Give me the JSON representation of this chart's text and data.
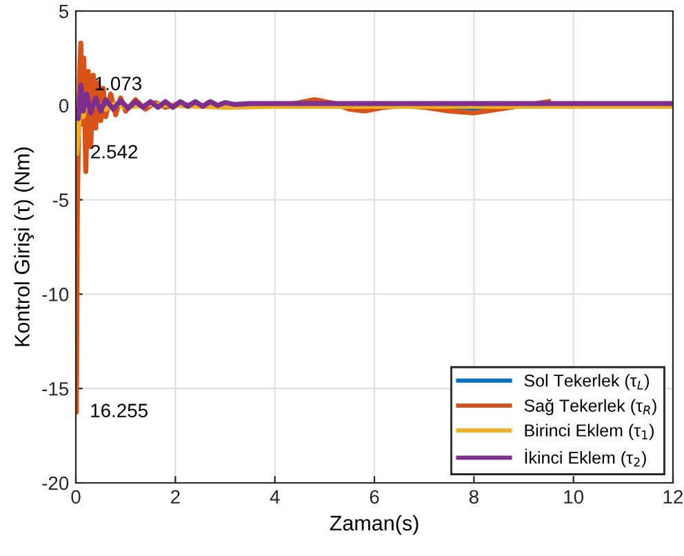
{
  "chart_data": {
    "type": "line",
    "xlabel": "Zaman(s)",
    "ylabel": "Kontrol Girişi (τ) (Nm)",
    "xlim": [
      0,
      12
    ],
    "ylim": [
      -20,
      5
    ],
    "xticks": [
      0,
      2,
      4,
      6,
      8,
      10,
      12
    ],
    "yticks": [
      -20,
      -15,
      -10,
      -5,
      0,
      5
    ],
    "grid": true,
    "legend": "bottom right",
    "line_style": "solid",
    "marker": "none",
    "series": [
      {
        "name": "Sol Tekerlek (τ$_{L}$)",
        "color": "#0072bd",
        "x": [
          7.5,
          7.8,
          8,
          8.2,
          8.5
        ],
        "values": [
          -0.1,
          -0.2,
          -0.25,
          -0.2,
          -0.1
        ]
      },
      {
        "name": "Sağ Tekerlek (τ$_{R}$)",
        "color": "#d95319",
        "x": [
          0,
          0.01,
          0.03,
          0.05,
          0.08,
          0.1,
          0.13,
          0.16,
          0.2,
          0.25,
          0.3,
          0.35,
          0.4,
          0.45,
          0.5,
          0.55,
          0.6,
          0.7,
          0.8,
          0.9,
          1.0,
          1.2,
          1.4,
          1.6,
          1.8,
          2.0,
          2.5,
          3,
          3.5,
          4,
          4.4,
          4.8,
          5.2,
          5.5,
          5.8,
          6.2,
          6.6,
          7,
          7.5,
          8,
          8.5,
          9,
          9.5
        ],
        "values": [
          0,
          -16.255,
          -5.5,
          -2,
          2,
          3.3,
          -1,
          2.5,
          -3.5,
          1.8,
          -2.2,
          1.6,
          -1.2,
          1.2,
          -0.8,
          0.9,
          -0.6,
          0.6,
          -0.5,
          0.4,
          -0.3,
          0.3,
          -0.2,
          0.15,
          -0.1,
          0.05,
          0,
          0,
          0,
          0,
          0.1,
          0.3,
          0.1,
          -0.2,
          -0.3,
          -0.1,
          0,
          -0.1,
          -0.3,
          -0.4,
          -0.2,
          0,
          0.2
        ]
      },
      {
        "name": "Birinci Eklem (τ$_{1}$)",
        "color": "#edb120",
        "x": [
          0,
          0.02,
          0.05,
          0.1,
          0.15,
          0.2,
          0.3,
          0.4,
          0.6,
          0.8,
          1,
          1.5,
          2,
          3,
          4,
          12
        ],
        "values": [
          0,
          -2.542,
          -1.3,
          0.4,
          -0.6,
          0.3,
          -0.3,
          0.2,
          -0.2,
          0.1,
          -0.1,
          0.05,
          0,
          -0.1,
          -0.05,
          -0.05
        ]
      },
      {
        "name": "İkinci Eklem (τ$_{2}$)",
        "color": "#7e2f8e",
        "x": [
          0,
          0.05,
          0.1,
          0.15,
          0.22,
          0.3,
          0.4,
          0.5,
          0.6,
          0.75,
          0.9,
          1.05,
          1.2,
          1.35,
          1.5,
          1.65,
          1.8,
          1.95,
          2.1,
          2.25,
          2.4,
          2.55,
          2.7,
          2.85,
          3.0,
          3.2,
          3.5,
          12
        ],
        "values": [
          -0.5,
          -0.7,
          1.073,
          -0.3,
          0.6,
          -0.4,
          0.4,
          -0.3,
          0.3,
          -0.2,
          0.25,
          -0.15,
          0.2,
          -0.1,
          0.2,
          -0.1,
          0.2,
          -0.1,
          0.2,
          -0.05,
          0.2,
          -0.05,
          0.2,
          0,
          0.15,
          0.05,
          0.1,
          0.1
        ]
      }
    ],
    "annotations": [
      {
        "text": "1.073",
        "x": 0.1,
        "y": 1.073
      },
      {
        "text": "2.542",
        "x": 0.02,
        "y": -2.542
      },
      {
        "text": "16.255",
        "x": 0.01,
        "y": -16.255
      }
    ]
  }
}
